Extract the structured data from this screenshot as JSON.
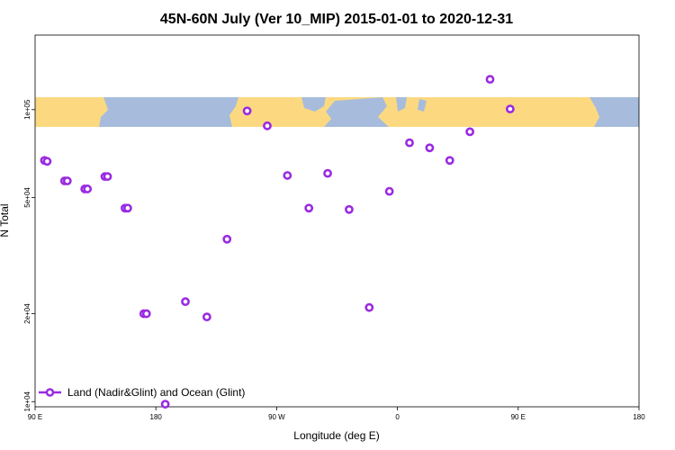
{
  "chart_data": {
    "type": "scatter",
    "title": "45N-60N July (Ver 10_MIP)   2015-01-01 to 2020-12-31",
    "xlabel": "Longitude (deg E)",
    "ylabel": "N Total",
    "x_ticks": [
      "90 E",
      "180",
      "90 W",
      "0",
      "90 E",
      "180"
    ],
    "y_ticks": [
      "1e+04",
      "2e+04",
      "5e+04",
      "1e+05"
    ],
    "y_scale": "log",
    "ylim": [
      9600,
      180000
    ],
    "legend": {
      "label": "Land (Nadir&Glint) and Ocean (Glint)",
      "position": "bottom-left"
    },
    "colors": {
      "series": "#9a2be2",
      "map_land": "#fcd980",
      "map_ocean": "#a7bcdc"
    },
    "background_map": "world land/ocean band 45N-60N",
    "series": [
      {
        "name": "Land (Nadir&Glint) and Ocean (Glint)",
        "x": [
          97,
          112,
          127,
          142,
          157,
          171,
          187,
          202,
          218,
          233,
          248,
          263,
          278,
          294,
          308,
          324,
          339,
          354,
          9,
          24,
          39,
          54,
          69,
          84,
          99,
          114,
          129,
          144,
          159,
          173
        ],
        "y": [
          67000,
          57000,
          53500,
          59000,
          46000,
          20000,
          9800,
          22000,
          19500,
          36000,
          99000,
          88000,
          59500,
          46000,
          60500,
          45500,
          21000,
          52500,
          77000,
          74000,
          67000,
          84000,
          127000,
          100500,
          66500,
          57000,
          53500,
          59000,
          46000,
          20000
        ]
      }
    ]
  }
}
